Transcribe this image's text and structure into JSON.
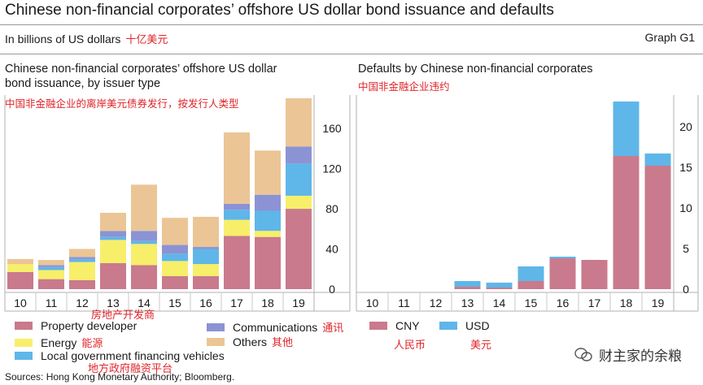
{
  "title": "Chinese non-financial corporates’ offshore US dollar bond issuance and defaults",
  "subtitle": "In billions of US dollars",
  "subtitle_cn": "十亿美元",
  "graph_id": "Graph G1",
  "source": "Sources: Hong Kong Monetary Authority; Bloomberg.",
  "watermark": "财主家的余粮",
  "chart_data": [
    {
      "type": "bar",
      "stacked": true,
      "title": "Chinese non-financial corporates’ offshore US dollar bond issuance, by issuer type",
      "title_line1": "Chinese non-financial corporates’ offshore US dollar",
      "title_line2": "bond issuance, by issuer type",
      "title_cn": "中国非金融企业的离岸美元债券发行，按发行人类型",
      "categories": [
        "10",
        "11",
        "12",
        "13",
        "14",
        "15",
        "16",
        "17",
        "18",
        "19"
      ],
      "ylim": [
        0,
        190
      ],
      "yticks": [
        "0",
        "40",
        "80",
        "120",
        "160"
      ],
      "ytick_values": [
        0,
        40,
        80,
        120,
        160
      ],
      "y_axis_side": "right",
      "series": [
        {
          "name": "Property developer",
          "name_cn": "房地产开发商",
          "color": "#c97a8c",
          "values": [
            17,
            10,
            9,
            26,
            24,
            13,
            13,
            53,
            52,
            80
          ]
        },
        {
          "name": "Energy",
          "name_cn": "能源",
          "color": "#f7ef6a",
          "values": [
            8,
            9,
            18,
            23,
            21,
            15,
            12,
            16,
            6,
            13
          ]
        },
        {
          "name": "Local government financing vehicles",
          "name_cn": "地方政府融资平台",
          "color": "#5fb6e8",
          "values": [
            0,
            3,
            3,
            3,
            3,
            7,
            15,
            10,
            20,
            32
          ]
        },
        {
          "name": "Communications",
          "name_cn": "通讯",
          "color": "#8b93d4",
          "values": [
            0,
            2,
            2,
            6,
            10,
            9,
            2,
            6,
            16,
            17
          ]
        },
        {
          "name": "Others",
          "name_cn": "其他",
          "color": "#ebc595",
          "values": [
            5,
            5,
            8,
            18,
            46,
            27,
            30,
            71,
            44,
            48
          ]
        }
      ]
    },
    {
      "type": "bar",
      "stacked": true,
      "title": "Defaults by Chinese non-financial corporates",
      "title_cn": "中国非金融企业违约",
      "categories": [
        "10",
        "11",
        "12",
        "13",
        "14",
        "15",
        "16",
        "17",
        "18",
        "19"
      ],
      "ylim": [
        0,
        23.5
      ],
      "yticks": [
        "0",
        "5",
        "10",
        "15",
        "20"
      ],
      "ytick_values": [
        0,
        5,
        10,
        15,
        20
      ],
      "y_axis_side": "right",
      "series": [
        {
          "name": "CNY",
          "name_cn": "人民币",
          "color": "#c97a8c",
          "values": [
            0,
            0,
            0,
            0.3,
            0.2,
            1,
            3.8,
            3.6,
            16.4,
            15.2
          ]
        },
        {
          "name": "USD",
          "name_cn": "美元",
          "color": "#5fb6e8",
          "values": [
            0,
            0,
            0,
            0.7,
            0.6,
            1.8,
            0.2,
            0,
            6.7,
            1.5
          ]
        }
      ]
    }
  ]
}
